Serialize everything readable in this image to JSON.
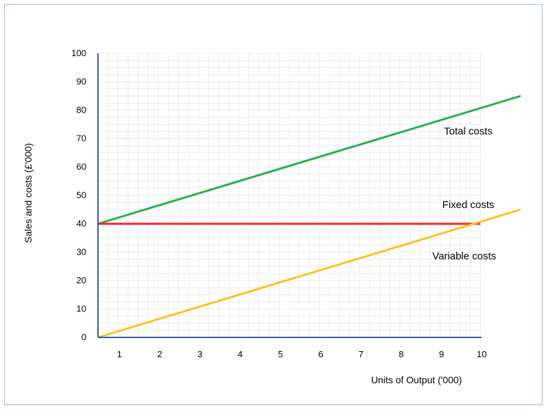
{
  "chart_data": {
    "type": "line",
    "title": "",
    "xlabel": "Units of Output ('000)",
    "ylabel": "Sales and costs (£'000)",
    "xlim": [
      0.5,
      11
    ],
    "ylim": [
      0,
      100
    ],
    "x_ticks": [
      1,
      2,
      3,
      4,
      5,
      6,
      7,
      8,
      9,
      10
    ],
    "y_ticks": [
      0,
      10,
      20,
      30,
      40,
      50,
      60,
      70,
      80,
      90,
      100
    ],
    "grid": true,
    "legend": "inline labels",
    "series": [
      {
        "name": "Total costs",
        "color": "#22b04a",
        "points": [
          [
            0.5,
            40
          ],
          [
            11,
            85
          ]
        ],
        "label_at": [
          9.7,
          71.5
        ]
      },
      {
        "name": "Fixed costs",
        "color": "#ff2020",
        "points": [
          [
            0.5,
            40
          ],
          [
            10,
            40
          ]
        ],
        "label_at": [
          9.7,
          45.5
        ]
      },
      {
        "name": "Variable costs",
        "color": "#ffc21a",
        "points": [
          [
            0.5,
            0
          ],
          [
            11,
            45
          ]
        ],
        "label_at": [
          9.6,
          27.5
        ]
      }
    ]
  }
}
